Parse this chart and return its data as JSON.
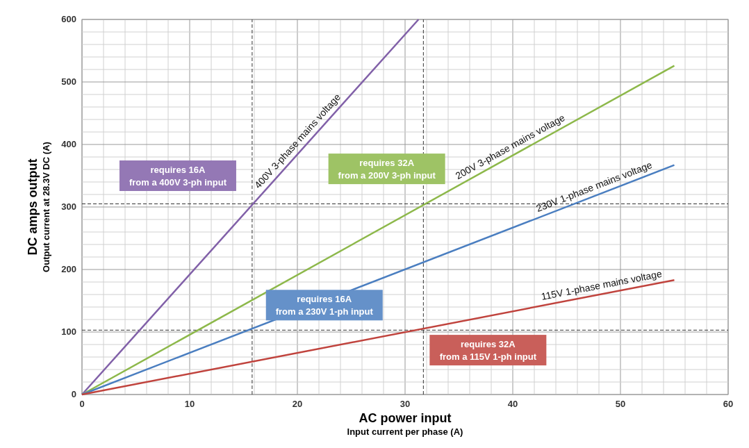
{
  "chart_data": {
    "type": "line",
    "xlabel": "AC power input\nInput current per phase (A)",
    "ylabel": "DC amps output\nOutput current at 28.3V DC (A)",
    "series": [
      {
        "name": "400V 3-phase mains voltage",
        "color": "#8160a8",
        "x": [
          0,
          31.25
        ],
        "values": [
          0,
          600
        ]
      },
      {
        "name": "200V 3-phase mains voltage",
        "color": "#8db84a",
        "x": [
          0,
          55
        ],
        "values": [
          0,
          526
        ]
      },
      {
        "name": "230V 1-phase mains voltage",
        "color": "#4a7ec0",
        "x": [
          0,
          55
        ],
        "values": [
          0,
          367
        ]
      },
      {
        "name": "115V 1-phase mains voltage",
        "color": "#c0433d",
        "x": [
          0,
          55
        ],
        "values": [
          0,
          183
        ]
      }
    ],
    "xlim": [
      0,
      60
    ],
    "ylim": [
      0,
      600
    ],
    "xticks": [
      0,
      {
        "value": 2,
        "label": null
      },
      {
        "value": 4,
        "label": null
      },
      {
        "value": 6,
        "label": null
      },
      {
        "value": 8,
        "label": null
      },
      10,
      {
        "value": 12,
        "label": null
      },
      {
        "value": 14,
        "label": null
      },
      {
        "value": 16,
        "label": null
      },
      {
        "value": 18,
        "label": null
      },
      20,
      {
        "value": 22,
        "label": null
      },
      {
        "value": 24,
        "label": null
      },
      {
        "value": 26,
        "label": null
      },
      {
        "value": 28,
        "label": null
      },
      30,
      {
        "value": 32,
        "label": null
      },
      {
        "value": 34,
        "label": null
      },
      {
        "value": 36,
        "label": null
      },
      {
        "value": 38,
        "label": null
      },
      40,
      {
        "value": 42,
        "label": null
      },
      {
        "value": 44,
        "label": null
      },
      {
        "value": 46,
        "label": null
      },
      {
        "value": 48,
        "label": null
      },
      50,
      {
        "value": 52,
        "label": null
      },
      {
        "value": 54,
        "label": null
      },
      {
        "value": 56,
        "label": null
      },
      {
        "value": 58,
        "label": null
      },
      60
    ],
    "yticks": [
      0,
      {
        "value": 20,
        "label": null
      },
      {
        "value": 40,
        "label": null
      },
      {
        "value": 60,
        "label": null
      },
      {
        "value": 80,
        "label": null
      },
      100,
      {
        "value": 120,
        "label": null
      },
      {
        "value": 140,
        "label": null
      },
      {
        "value": 160,
        "label": null
      },
      {
        "value": 180,
        "label": null
      },
      200,
      {
        "value": 220,
        "label": null
      },
      {
        "value": 240,
        "label": null
      },
      {
        "value": 260,
        "label": null
      },
      {
        "value": 280,
        "label": null
      },
      300,
      {
        "value": 320,
        "label": null
      },
      {
        "value": 340,
        "label": null
      },
      {
        "value": 360,
        "label": null
      },
      {
        "value": 380,
        "label": null
      },
      400,
      {
        "value": 420,
        "label": null
      },
      {
        "value": 440,
        "label": null
      },
      {
        "value": 460,
        "label": null
      },
      {
        "value": 480,
        "label": null
      },
      500,
      {
        "value": 520,
        "label": null
      },
      {
        "value": 540,
        "label": null
      },
      {
        "value": 560,
        "label": null
      },
      {
        "value": 580,
        "label": null
      },
      600
    ],
    "grid": true,
    "line_style": "solid",
    "marker": "none",
    "ref_lines": [
      {
        "axis": "x",
        "value": 15.8,
        "color": "#333333",
        "line_style": "dashed"
      },
      {
        "axis": "x",
        "value": 31.7,
        "color": "#333333",
        "line_style": "dashed"
      },
      {
        "axis": "y",
        "value": 305,
        "color": "#333333",
        "line_style": "dashed"
      },
      {
        "axis": "y",
        "value": 103,
        "color": "#333333",
        "line_style": "dashed"
      }
    ],
    "annotations": [
      "requires 16A\nfrom a 400V 3-ph input",
      "requires 32A\nfrom a 200V 3-ph input",
      "requires 16A\nfrom a 230V 1-ph input",
      "requires 32A\nfrom a 115V 1-ph input"
    ]
  }
}
